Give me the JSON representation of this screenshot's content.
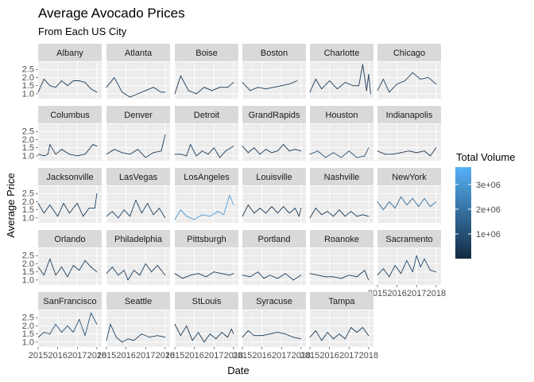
{
  "chart_data": {
    "type": "line",
    "title": "Average Avocado Prices",
    "subtitle": "From Each US City",
    "xlabel": "Date",
    "ylabel": "Average Price",
    "x_ticks": [
      "2015",
      "2016",
      "2017",
      "2018"
    ],
    "y_ticks": [
      "1.0",
      "1.5",
      "2.0",
      "2.5"
    ],
    "xlim": [
      2015.0,
      2018.25
    ],
    "ylim": [
      0.7,
      2.95
    ],
    "facets_x": "2015.0..2018.25",
    "legend": {
      "title": "Total Volume",
      "position": "right",
      "ticks": [
        "1e+06",
        "2e+06",
        "3e+06"
      ],
      "tick_values": [
        1000000,
        2000000,
        3000000
      ],
      "range": [
        0,
        3700000
      ],
      "color_low": "#132B43",
      "color_high": "#56B1F7"
    },
    "panels": [
      {
        "name": "Albany",
        "x": [
          2015.0,
          2015.3,
          2015.6,
          2015.9,
          2016.2,
          2016.5,
          2016.8,
          2017.1,
          2017.4,
          2017.7,
          2018.0
        ],
        "y": [
          1.1,
          1.9,
          1.5,
          1.4,
          1.8,
          1.5,
          1.8,
          1.8,
          1.7,
          1.3,
          1.1
        ],
        "v": [
          0.4,
          0.5,
          0.4,
          0.4,
          0.5,
          0.5,
          0.4,
          0.5,
          0.4,
          0.4,
          0.5
        ]
      },
      {
        "name": "Atlanta",
        "x": [
          2015.0,
          2015.4,
          2015.8,
          2016.2,
          2016.6,
          2017.0,
          2017.4,
          2017.8,
          2018.0
        ],
        "y": [
          1.4,
          2.0,
          1.1,
          0.8,
          1.0,
          1.2,
          1.4,
          1.1,
          1.1
        ],
        "v": [
          0.5,
          0.6,
          0.5,
          0.5,
          0.6,
          0.6,
          0.5,
          0.6,
          0.6
        ]
      },
      {
        "name": "Boise",
        "x": [
          2015.0,
          2015.3,
          2015.7,
          2016.1,
          2016.5,
          2016.9,
          2017.3,
          2017.7,
          2018.0
        ],
        "y": [
          1.0,
          2.1,
          1.2,
          1.0,
          1.4,
          1.2,
          1.4,
          1.4,
          1.7
        ],
        "v": [
          0.3,
          0.4,
          0.3,
          0.3,
          0.4,
          0.3,
          0.4,
          0.3,
          0.4
        ]
      },
      {
        "name": "Boston",
        "x": [
          2015.0,
          2015.4,
          2015.8,
          2016.2,
          2016.6,
          2017.0,
          2017.4,
          2017.8
        ],
        "y": [
          1.7,
          1.2,
          1.4,
          1.3,
          1.4,
          1.5,
          1.6,
          1.8
        ],
        "v": [
          0.6,
          0.5,
          0.6,
          0.6,
          0.5,
          0.6,
          0.6,
          0.7
        ]
      },
      {
        "name": "Charlotte",
        "x": [
          2015.0,
          2015.3,
          2015.6,
          2016.0,
          2016.4,
          2016.8,
          2017.2,
          2017.5,
          2017.7,
          2017.9,
          2018.0,
          2018.1
        ],
        "y": [
          1.1,
          1.9,
          1.3,
          1.8,
          1.3,
          1.7,
          1.5,
          1.5,
          2.8,
          1.2,
          2.2,
          1.0
        ],
        "v": [
          0.4,
          0.5,
          0.4,
          0.5,
          0.4,
          0.5,
          0.5,
          0.4,
          0.5,
          0.4,
          0.5,
          0.4
        ]
      },
      {
        "name": "Chicago",
        "x": [
          2015.0,
          2015.3,
          2015.6,
          2016.0,
          2016.4,
          2016.8,
          2017.2,
          2017.6,
          2018.0
        ],
        "y": [
          1.2,
          1.9,
          1.1,
          1.6,
          1.8,
          2.3,
          1.9,
          2.0,
          1.6
        ],
        "v": [
          0.6,
          0.7,
          0.6,
          0.7,
          0.7,
          0.8,
          0.7,
          0.7,
          0.8
        ]
      },
      {
        "name": "Columbus",
        "x": [
          2015.0,
          2015.3,
          2015.5,
          2015.6,
          2015.9,
          2016.2,
          2016.6,
          2017.0,
          2017.4,
          2017.8,
          2018.0
        ],
        "y": [
          1.1,
          1.0,
          1.1,
          1.7,
          1.1,
          1.4,
          1.1,
          1.0,
          1.1,
          1.7,
          1.6
        ],
        "v": [
          0.4,
          0.4,
          0.4,
          0.5,
          0.4,
          0.4,
          0.4,
          0.4,
          0.4,
          0.5,
          0.4
        ]
      },
      {
        "name": "Denver",
        "x": [
          2015.0,
          2015.4,
          2015.8,
          2016.2,
          2016.6,
          2017.0,
          2017.4,
          2017.8,
          2018.0
        ],
        "y": [
          1.1,
          1.4,
          1.2,
          1.1,
          1.4,
          0.9,
          1.2,
          1.3,
          2.3
        ],
        "v": [
          0.5,
          0.5,
          0.5,
          0.6,
          0.5,
          0.5,
          0.6,
          0.5,
          0.5
        ]
      },
      {
        "name": "Detroit",
        "x": [
          2015.0,
          2015.3,
          2015.6,
          2015.8,
          2016.1,
          2016.4,
          2016.7,
          2017.0,
          2017.3,
          2017.6,
          2018.0
        ],
        "y": [
          1.1,
          1.1,
          1.0,
          1.7,
          1.0,
          1.3,
          1.1,
          1.5,
          0.9,
          1.3,
          1.6
        ],
        "v": [
          0.5,
          0.5,
          0.5,
          0.6,
          0.5,
          0.5,
          0.5,
          0.6,
          0.5,
          0.5,
          0.5
        ]
      },
      {
        "name": "GrandRapids",
        "x": [
          2015.0,
          2015.3,
          2015.6,
          2015.9,
          2016.2,
          2016.5,
          2016.8,
          2017.1,
          2017.4,
          2017.7,
          2018.0
        ],
        "y": [
          1.6,
          1.2,
          1.5,
          1.1,
          1.4,
          1.2,
          1.3,
          1.7,
          1.3,
          1.4,
          1.3
        ],
        "v": [
          0.4,
          0.4,
          0.4,
          0.4,
          0.4,
          0.4,
          0.4,
          0.4,
          0.4,
          0.4,
          0.4
        ]
      },
      {
        "name": "Houston",
        "x": [
          2015.0,
          2015.4,
          2015.8,
          2016.2,
          2016.6,
          2017.0,
          2017.4,
          2017.8,
          2018.0
        ],
        "y": [
          1.1,
          1.3,
          0.9,
          1.2,
          0.9,
          1.3,
          0.9,
          1.0,
          1.5
        ],
        "v": [
          1.0,
          1.1,
          1.0,
          1.1,
          1.0,
          1.1,
          1.0,
          1.1,
          1.1
        ]
      },
      {
        "name": "Indianapolis",
        "x": [
          2015.0,
          2015.4,
          2015.8,
          2016.2,
          2016.6,
          2017.0,
          2017.4,
          2017.7,
          2018.0
        ],
        "y": [
          1.3,
          1.1,
          1.1,
          1.2,
          1.3,
          1.2,
          1.3,
          1.0,
          1.5
        ],
        "v": [
          0.4,
          0.4,
          0.4,
          0.4,
          0.4,
          0.4,
          0.4,
          0.4,
          0.4
        ]
      },
      {
        "name": "Jacksonville",
        "x": [
          2015.0,
          2015.3,
          2015.6,
          2016.0,
          2016.3,
          2016.6,
          2017.0,
          2017.3,
          2017.6,
          2017.9,
          2018.0
        ],
        "y": [
          1.9,
          1.3,
          1.8,
          1.1,
          1.9,
          1.3,
          1.9,
          1.1,
          1.6,
          1.6,
          2.5
        ],
        "v": [
          0.5,
          0.5,
          0.5,
          0.5,
          0.5,
          0.5,
          0.5,
          0.5,
          0.6,
          0.6,
          0.6
        ]
      },
      {
        "name": "LasVegas",
        "x": [
          2015.0,
          2015.3,
          2015.6,
          2015.9,
          2016.2,
          2016.5,
          2016.8,
          2017.1,
          2017.4,
          2017.7,
          2018.0
        ],
        "y": [
          1.1,
          1.4,
          1.0,
          1.5,
          1.1,
          2.1,
          1.3,
          1.9,
          1.2,
          1.6,
          1.0
        ],
        "v": [
          0.6,
          0.6,
          0.6,
          0.7,
          0.6,
          0.7,
          0.6,
          0.7,
          0.6,
          0.7,
          0.6
        ]
      },
      {
        "name": "LosAngeles",
        "x": [
          2015.0,
          2015.3,
          2015.6,
          2016.0,
          2016.4,
          2016.8,
          2017.2,
          2017.5,
          2017.8,
          2018.0
        ],
        "y": [
          0.9,
          1.5,
          1.1,
          0.9,
          1.2,
          1.1,
          1.4,
          1.2,
          2.4,
          1.8
        ],
        "v": [
          2.8,
          3.0,
          2.9,
          3.1,
          3.0,
          3.2,
          3.1,
          3.3,
          3.1,
          3.4
        ]
      },
      {
        "name": "Louisville",
        "x": [
          2015.0,
          2015.3,
          2015.6,
          2015.9,
          2016.2,
          2016.5,
          2016.8,
          2017.1,
          2017.4,
          2017.7,
          2017.9,
          2018.0
        ],
        "y": [
          1.1,
          1.8,
          1.3,
          1.6,
          1.3,
          1.7,
          1.3,
          1.7,
          1.3,
          1.6,
          1.1,
          1.6
        ],
        "v": [
          0.4,
          0.4,
          0.4,
          0.4,
          0.4,
          0.4,
          0.4,
          0.4,
          0.4,
          0.4,
          0.4,
          0.4
        ]
      },
      {
        "name": "Nashville",
        "x": [
          2015.0,
          2015.3,
          2015.6,
          2015.9,
          2016.2,
          2016.5,
          2016.8,
          2017.1,
          2017.4,
          2017.7,
          2018.0
        ],
        "y": [
          1.0,
          1.6,
          1.2,
          1.4,
          1.1,
          1.5,
          1.1,
          1.4,
          1.1,
          1.2,
          1.1
        ],
        "v": [
          0.4,
          0.4,
          0.4,
          0.4,
          0.4,
          0.4,
          0.4,
          0.4,
          0.4,
          0.4,
          0.4
        ]
      },
      {
        "name": "NewYork",
        "x": [
          2015.0,
          2015.3,
          2015.6,
          2015.9,
          2016.2,
          2016.5,
          2016.8,
          2017.1,
          2017.4,
          2017.7,
          2018.0
        ],
        "y": [
          2.0,
          1.5,
          2.0,
          1.6,
          2.3,
          1.8,
          2.2,
          1.7,
          2.2,
          1.7,
          2.0
        ],
        "v": [
          1.5,
          1.6,
          1.6,
          1.7,
          1.8,
          1.7,
          1.9,
          1.8,
          1.9,
          2.0,
          1.8
        ]
      },
      {
        "name": "Orlando",
        "x": [
          2015.0,
          2015.3,
          2015.6,
          2015.9,
          2016.2,
          2016.5,
          2016.8,
          2017.1,
          2017.4,
          2017.7,
          2018.0
        ],
        "y": [
          1.8,
          1.3,
          2.3,
          1.3,
          1.8,
          1.2,
          1.9,
          1.6,
          2.2,
          1.8,
          1.5
        ],
        "v": [
          0.5,
          0.5,
          0.6,
          0.5,
          0.6,
          0.5,
          0.6,
          0.5,
          0.6,
          0.6,
          0.5
        ]
      },
      {
        "name": "Philadelphia",
        "x": [
          2015.0,
          2015.3,
          2015.6,
          2015.9,
          2016.1,
          2016.4,
          2016.7,
          2017.0,
          2017.3,
          2017.6,
          2018.0
        ],
        "y": [
          1.4,
          1.8,
          1.3,
          1.6,
          1.0,
          1.6,
          1.3,
          2.0,
          1.5,
          1.9,
          1.3
        ],
        "v": [
          0.5,
          0.6,
          0.5,
          0.6,
          0.5,
          0.6,
          0.5,
          0.6,
          0.5,
          0.6,
          0.5
        ]
      },
      {
        "name": "Pittsburgh",
        "x": [
          2015.0,
          2015.4,
          2015.8,
          2016.2,
          2016.6,
          2017.0,
          2017.4,
          2017.8,
          2018.0
        ],
        "y": [
          1.4,
          1.1,
          1.3,
          1.4,
          1.2,
          1.5,
          1.4,
          1.3,
          1.4
        ],
        "v": [
          0.4,
          0.4,
          0.4,
          0.4,
          0.4,
          0.4,
          0.4,
          0.4,
          0.4
        ]
      },
      {
        "name": "Portland",
        "x": [
          2015.0,
          2015.4,
          2015.8,
          2016.1,
          2016.4,
          2016.8,
          2017.2,
          2017.6,
          2018.0
        ],
        "y": [
          1.3,
          1.2,
          1.5,
          1.1,
          1.3,
          1.1,
          1.4,
          1.0,
          1.3
        ],
        "v": [
          0.6,
          0.6,
          0.6,
          0.6,
          0.6,
          0.6,
          0.6,
          0.6,
          0.6
        ]
      },
      {
        "name": "Roanoke",
        "x": [
          2015.0,
          2015.4,
          2015.8,
          2016.2,
          2016.6,
          2017.0,
          2017.4,
          2017.8,
          2018.0
        ],
        "y": [
          1.4,
          1.3,
          1.2,
          1.2,
          1.1,
          1.3,
          1.2,
          1.6,
          1.0
        ],
        "v": [
          0.4,
          0.4,
          0.4,
          0.4,
          0.4,
          0.4,
          0.4,
          0.4,
          0.4
        ]
      },
      {
        "name": "Sacramento",
        "x": [
          2015.0,
          2015.3,
          2015.6,
          2015.9,
          2016.2,
          2016.5,
          2016.8,
          2017.0,
          2017.2,
          2017.4,
          2017.7,
          2018.0
        ],
        "y": [
          1.3,
          1.7,
          1.2,
          1.9,
          1.4,
          2.2,
          1.5,
          2.5,
          1.8,
          2.3,
          1.6,
          1.5
        ],
        "v": [
          0.6,
          0.7,
          0.6,
          0.7,
          0.6,
          0.7,
          0.6,
          0.8,
          0.7,
          0.7,
          0.7,
          0.6
        ]
      },
      {
        "name": "SanFrancisco",
        "x": [
          2015.0,
          2015.3,
          2015.6,
          2015.9,
          2016.2,
          2016.5,
          2016.8,
          2017.1,
          2017.4,
          2017.7,
          2018.0
        ],
        "y": [
          1.3,
          1.6,
          1.5,
          2.1,
          1.6,
          2.0,
          1.6,
          2.4,
          1.4,
          2.8,
          2.1
        ],
        "v": [
          0.9,
          1.0,
          1.0,
          1.1,
          1.0,
          1.1,
          1.0,
          1.2,
          1.1,
          1.2,
          1.1
        ]
      },
      {
        "name": "Seattle",
        "x": [
          2015.0,
          2015.2,
          2015.5,
          2015.8,
          2016.1,
          2016.4,
          2016.8,
          2017.2,
          2017.6,
          2018.0
        ],
        "y": [
          1.1,
          2.1,
          1.3,
          1.0,
          1.2,
          1.1,
          1.5,
          1.3,
          1.4,
          1.3
        ],
        "v": [
          0.6,
          0.7,
          0.6,
          0.6,
          0.7,
          0.6,
          0.7,
          0.6,
          0.7,
          0.7
        ]
      },
      {
        "name": "StLouis",
        "x": [
          2015.0,
          2015.3,
          2015.6,
          2015.9,
          2016.2,
          2016.5,
          2016.8,
          2017.1,
          2017.4,
          2017.7,
          2017.9,
          2018.0
        ],
        "y": [
          2.1,
          1.4,
          2.0,
          1.1,
          1.6,
          1.0,
          1.5,
          1.2,
          1.6,
          1.3,
          1.8,
          1.5
        ],
        "v": [
          0.4,
          0.4,
          0.4,
          0.4,
          0.4,
          0.4,
          0.4,
          0.4,
          0.4,
          0.4,
          0.4,
          0.4
        ]
      },
      {
        "name": "Syracuse",
        "x": [
          2015.0,
          2015.3,
          2015.6,
          2016.0,
          2016.4,
          2016.8,
          2017.2,
          2017.6,
          2018.0
        ],
        "y": [
          1.3,
          1.7,
          1.4,
          1.4,
          1.5,
          1.6,
          1.5,
          1.3,
          1.2
        ],
        "v": [
          0.4,
          0.4,
          0.4,
          0.4,
          0.4,
          0.4,
          0.4,
          0.4,
          0.4
        ]
      },
      {
        "name": "Tampa",
        "x": [
          2015.0,
          2015.3,
          2015.6,
          2015.9,
          2016.2,
          2016.5,
          2016.8,
          2017.1,
          2017.4,
          2017.7,
          2018.0
        ],
        "y": [
          1.3,
          1.7,
          1.1,
          1.6,
          1.2,
          1.5,
          1.2,
          1.9,
          1.6,
          1.9,
          1.4
        ],
        "v": [
          0.5,
          0.5,
          0.5,
          0.6,
          0.5,
          0.6,
          0.5,
          0.6,
          0.5,
          0.6,
          0.5
        ]
      }
    ]
  }
}
